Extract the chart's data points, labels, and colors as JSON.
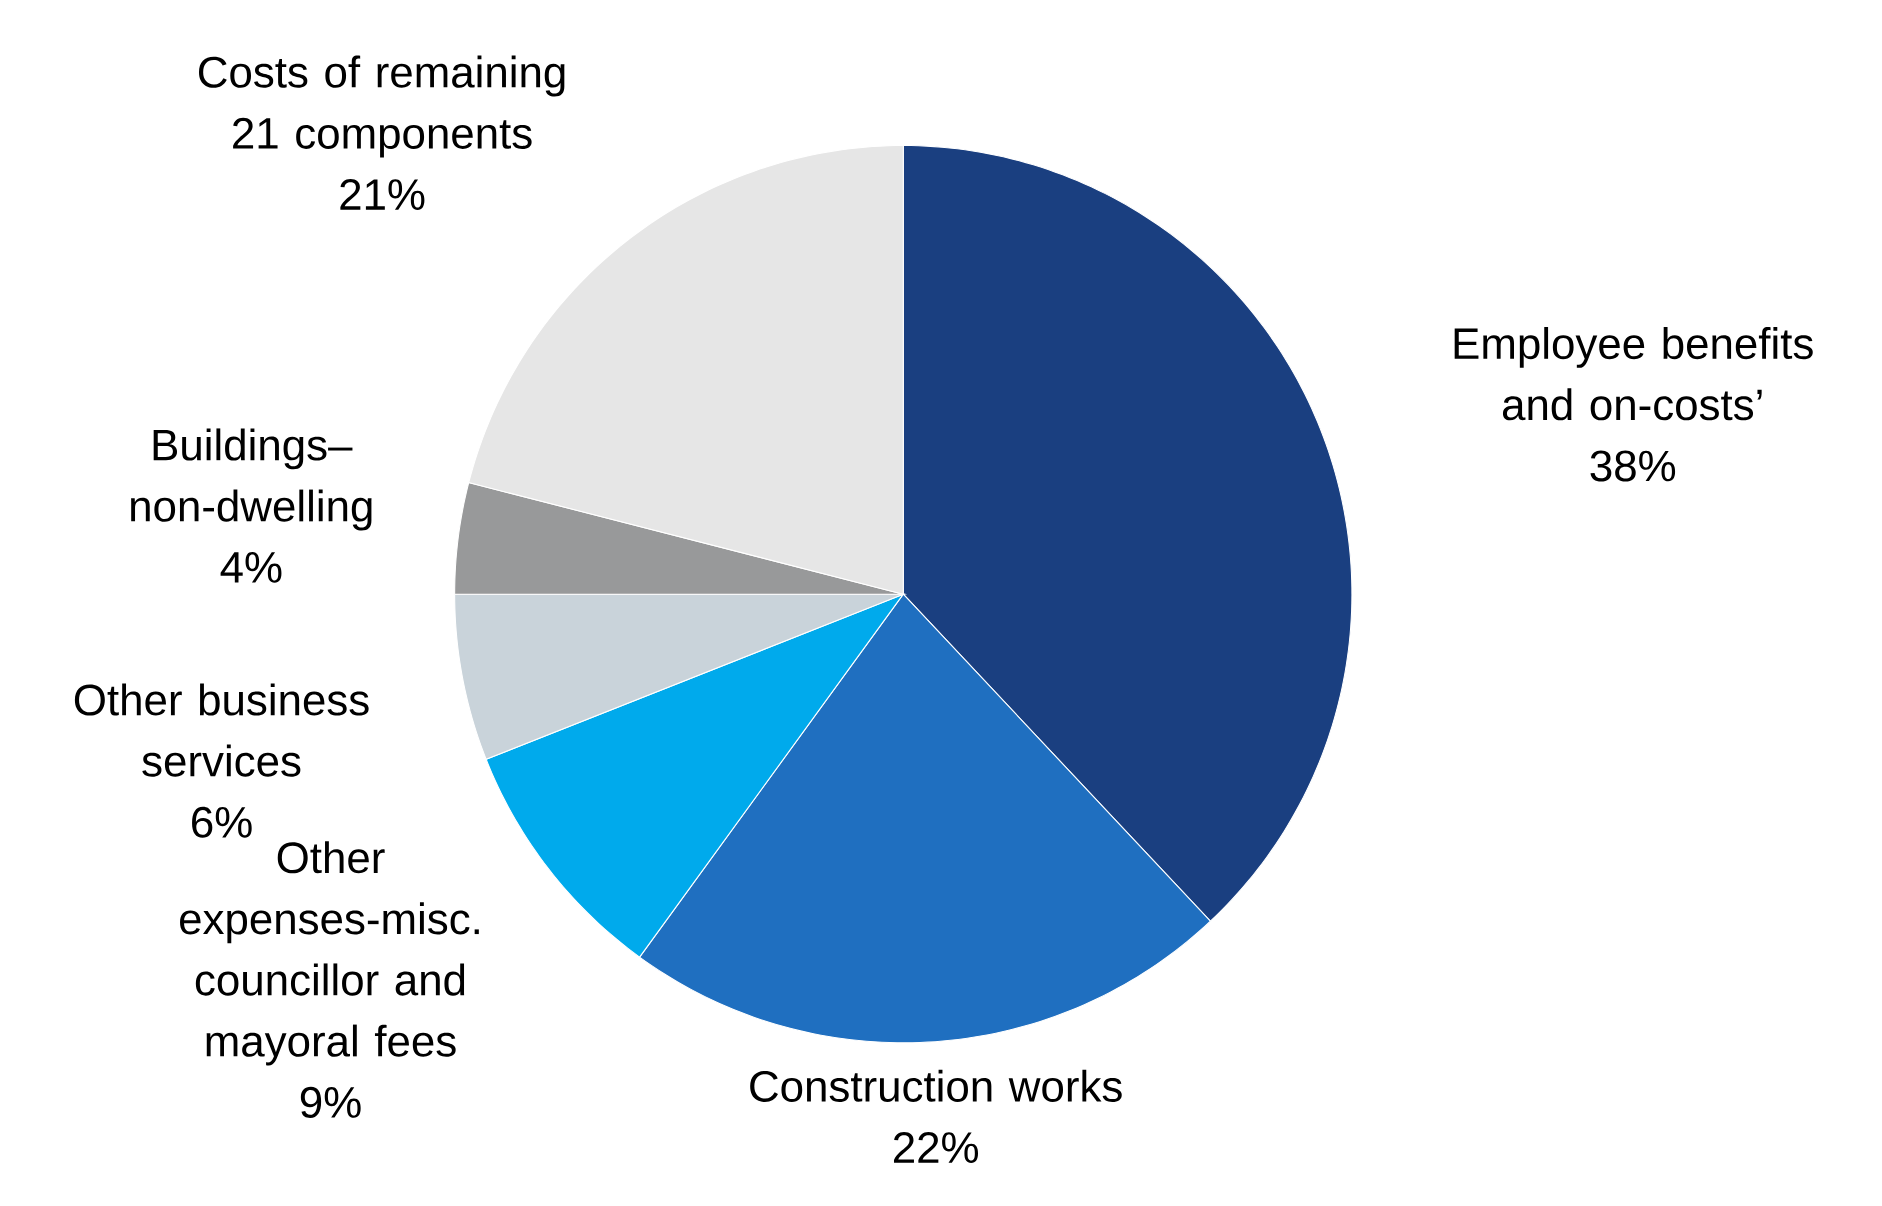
{
  "chart_data": {
    "type": "pie",
    "categories": [
      "Employee benefits and on-costs’",
      "Construction works",
      "Other expenses-misc. councillor and mayoral fees",
      "Other business services",
      "Buildings–non-dwelling",
      "Costs of remaining 21 components"
    ],
    "values": [
      38,
      22,
      9,
      6,
      4,
      21
    ],
    "colors": [
      "#1a3f80",
      "#1f6fc0",
      "#00aaec",
      "#c9d3da",
      "#98999a",
      "#e6e6e6"
    ],
    "value_labels": [
      "38%",
      "22%",
      "9%",
      "6%",
      "4%",
      "21%"
    ]
  }
}
